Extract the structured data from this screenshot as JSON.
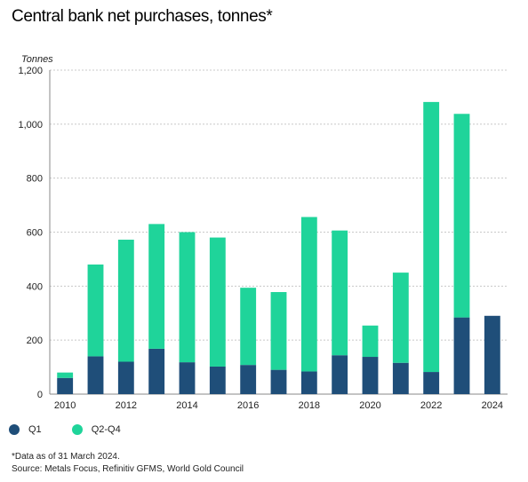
{
  "colors": {
    "q1": "#1f4e79",
    "q2q4": "#1fd49a",
    "grid": "#c8c8c8",
    "axis": "#8a8a8a"
  },
  "chart_data": {
    "type": "bar",
    "stacked": true,
    "title": "Central bank net purchases, tonnes*",
    "ylabel": "Tonnes",
    "ylim": [
      0,
      1200
    ],
    "yticks": [
      0,
      200,
      400,
      600,
      800,
      1000,
      1200
    ],
    "ytick_labels": [
      "0",
      "200",
      "400",
      "600",
      "800",
      "1,000",
      "1,200"
    ],
    "categories": [
      "2010",
      "2011",
      "2012",
      "2013",
      "2014",
      "2015",
      "2016",
      "2017",
      "2018",
      "2019",
      "2020",
      "2021",
      "2022",
      "2023",
      "2024"
    ],
    "xtick_labels": [
      "2010",
      "",
      "2012",
      "",
      "2014",
      "",
      "2016",
      "",
      "2018",
      "",
      "2020",
      "",
      "2022",
      "",
      "2024"
    ],
    "series": [
      {
        "name": "Q1",
        "values": [
          60,
          140,
          120,
          168,
          118,
          102,
          108,
          90,
          84,
          144,
          138,
          116,
          82,
          284,
          290
        ]
      },
      {
        "name": "Q2-Q4",
        "values": [
          20,
          340,
          452,
          462,
          482,
          478,
          286,
          288,
          572,
          462,
          116,
          334,
          1000,
          754,
          0
        ]
      }
    ],
    "grid": true,
    "legend": "bottom-left"
  },
  "footnotes": {
    "note": "*Data as of 31 March 2024.",
    "source": "Source: Metals Focus, Refinitiv GFMS, World Gold Council"
  }
}
